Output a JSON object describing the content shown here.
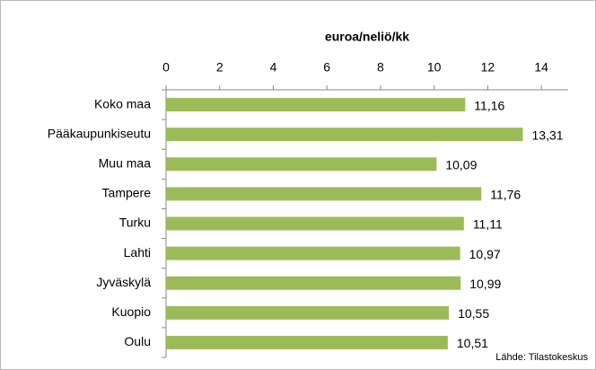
{
  "chart_data": {
    "type": "bar",
    "orientation": "horizontal",
    "x_label": "euroa/neliö/kk",
    "categories": [
      "Koko maa",
      "Pääkaupunkiseutu",
      "Muu maa",
      "Tampere",
      "Turku",
      "Lahti",
      "Jyväskylä",
      "Kuopio",
      "Oulu"
    ],
    "values": [
      11.16,
      13.31,
      10.09,
      11.76,
      11.11,
      10.97,
      10.99,
      10.55,
      10.51
    ],
    "value_labels": [
      "11,16",
      "13,31",
      "10,09",
      "11,76",
      "11,11",
      "10,97",
      "10,99",
      "10,55",
      "10,51"
    ],
    "color": "#9bbb59",
    "xlim": [
      0,
      15
    ],
    "xticks": [
      0,
      2,
      4,
      6,
      8,
      10,
      12,
      14
    ],
    "source": "Lähde: Tilastokeskus"
  }
}
